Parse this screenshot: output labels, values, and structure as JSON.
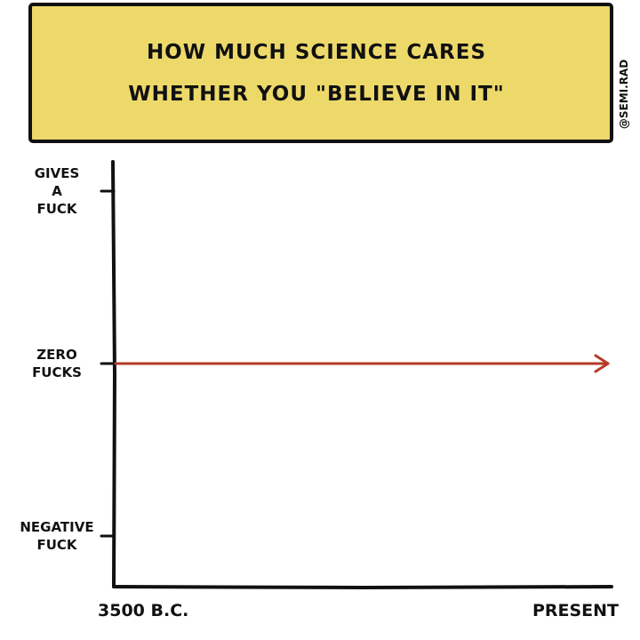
{
  "chart_data": {
    "type": "line",
    "title": "HOW MUCH SCIENCE CARES WHETHER YOU \"BELIEVE IN IT\"",
    "title_lines": [
      "HOW MUCH SCIENCE CARES",
      "WHETHER YOU \"BELIEVE IN IT\""
    ],
    "credit": "@SEMI.RAD",
    "xlabel": "",
    "ylabel": "",
    "x_ticks": [
      {
        "label": "3500 B.C.",
        "value": 0
      },
      {
        "label": "PRESENT",
        "value": 1
      }
    ],
    "y_ticks": [
      {
        "label_lines": [
          "GIVES",
          "A",
          "FUCK"
        ],
        "value": 1
      },
      {
        "label_lines": [
          "ZERO",
          "FUCKS"
        ],
        "value": 0
      },
      {
        "label_lines": [
          "NEGATIVE",
          "FUCK"
        ],
        "value": -1
      }
    ],
    "ylim": [
      -1.2,
      1.1
    ],
    "xlim": [
      0,
      1
    ],
    "series": [
      {
        "x": [
          0,
          1
        ],
        "values": [
          0,
          0
        ],
        "arrow_end": true
      }
    ],
    "grid": false,
    "colors": {
      "title_box": "#EDD96A",
      "line": "#B53A28",
      "axis": "#111111"
    }
  }
}
